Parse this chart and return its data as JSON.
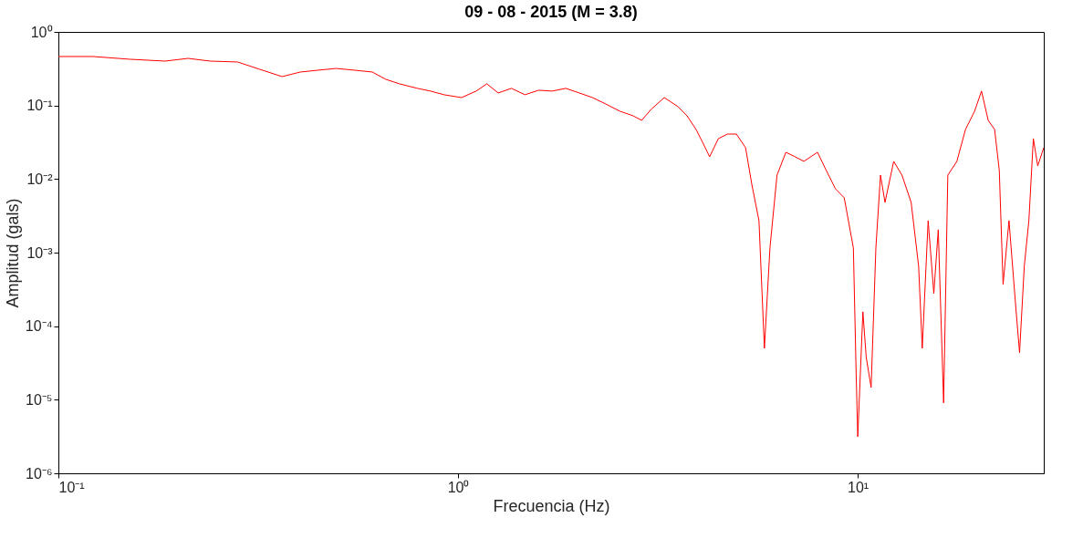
{
  "chart_data": {
    "type": "line",
    "title": "09 - 08 - 2015 (M = 3.8)",
    "xlabel": "Frecuencia (Hz)",
    "ylabel": "Amplitud (gals)",
    "log": "xy",
    "grid": false,
    "marker": "none",
    "line_style": "solid",
    "xlim": [
      0.1,
      29.2
    ],
    "ylim": [
      1e-06,
      1
    ],
    "xticks": [
      {
        "value": 0.1,
        "label": "10⁻¹"
      },
      {
        "value": 1,
        "label": "10⁰"
      },
      {
        "value": 10,
        "label": "10¹"
      }
    ],
    "yticks": [
      {
        "value": 1e-06,
        "label": "10⁻⁶"
      },
      {
        "value": 1e-05,
        "label": "10⁻⁵"
      },
      {
        "value": 0.0001,
        "label": "10⁻⁴"
      },
      {
        "value": 0.001,
        "label": "10⁻³"
      },
      {
        "value": 0.01,
        "label": "10⁻²"
      },
      {
        "value": 0.1,
        "label": "10⁻¹"
      },
      {
        "value": 1,
        "label": "10⁰"
      }
    ],
    "series": [
      {
        "color": "#ff0000",
        "x": [
          0.1,
          0.122,
          0.151,
          0.185,
          0.211,
          0.24,
          0.281,
          0.319,
          0.363,
          0.403,
          0.447,
          0.495,
          0.55,
          0.61,
          0.659,
          0.713,
          0.791,
          0.853,
          0.922,
          1.02,
          1.11,
          1.18,
          1.26,
          1.36,
          1.47,
          1.59,
          1.72,
          1.86,
          2.01,
          2.17,
          2.34,
          2.54,
          2.74,
          2.88,
          3.04,
          3.28,
          3.55,
          3.74,
          3.94,
          4.1,
          4.26,
          4.48,
          4.72,
          4.97,
          5.24,
          5.43,
          5.66,
          5.84,
          6.03,
          6.28,
          6.61,
          6.97,
          7.33,
          7.93,
          8.34,
          8.79,
          9.25,
          9.75,
          9.91,
          10.0,
          10.3,
          10.5,
          10.8,
          11.1,
          11.4,
          11.7,
          12.3,
          12.9,
          13.6,
          14.2,
          14.5,
          15.0,
          15.5,
          15.9,
          16.4,
          16.8,
          17.7,
          18.6,
          19.6,
          20.4,
          21.2,
          22.0,
          22.6,
          23.1,
          23.9,
          24.8,
          25.4,
          26.1,
          26.8,
          27.5,
          28.2,
          29.2
        ],
        "values": [
          0.463,
          0.463,
          0.425,
          0.401,
          0.437,
          0.401,
          0.39,
          0.31,
          0.247,
          0.285,
          0.302,
          0.319,
          0.302,
          0.285,
          0.227,
          0.197,
          0.171,
          0.157,
          0.14,
          0.128,
          0.157,
          0.197,
          0.148,
          0.171,
          0.14,
          0.161,
          0.157,
          0.171,
          0.148,
          0.128,
          0.105,
          0.0836,
          0.0724,
          0.0628,
          0.0885,
          0.128,
          0.0964,
          0.0724,
          0.0472,
          0.0308,
          0.0201,
          0.0355,
          0.0409,
          0.0409,
          0.0267,
          0.00853,
          0.00272,
          5e-05,
          0.00116,
          0.0113,
          0.0231,
          0.0201,
          0.0174,
          0.0231,
          0.0131,
          0.00739,
          0.00556,
          0.00116,
          2.13e-05,
          3.15e-06,
          0.000157,
          3.77e-05,
          1.47e-05,
          0.00116,
          0.0113,
          0.00482,
          0.0174,
          0.0113,
          0.00482,
          0.000654,
          5e-05,
          0.00272,
          0.000278,
          0.00205,
          9.06e-06,
          0.0113,
          0.0174,
          0.0472,
          0.0836,
          0.157,
          0.0628,
          0.0472,
          0.0131,
          0.00037,
          0.00272,
          0.000209,
          4.35e-05,
          0.000654,
          0.00272,
          0.0355,
          0.0151,
          0.0267
        ]
      }
    ]
  }
}
